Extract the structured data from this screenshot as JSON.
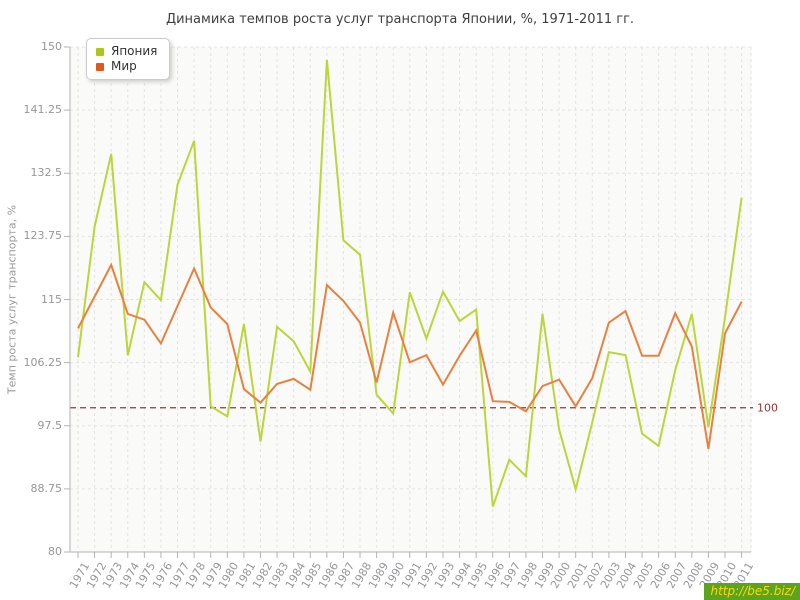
{
  "title": "Динамика темпов роста услуг транспорта Японии, %, 1971-2011 гг.",
  "watermark": {
    "text": "http://be5.biz/"
  },
  "chart_data": {
    "type": "line",
    "title": "Динамика темпов роста услуг транспорта Японии, %, 1971-2011 гг.",
    "xlabel": "",
    "ylabel": "Темп роста услуг транспорта, %",
    "ylim": [
      80,
      150
    ],
    "yticks": [
      80,
      88.75,
      97.5,
      106.25,
      115,
      123.75,
      132.5,
      141.25,
      150
    ],
    "grid": true,
    "legend_position": "top-left",
    "categories": [
      1971,
      1972,
      1973,
      1974,
      1975,
      1976,
      1977,
      1978,
      1979,
      1980,
      1981,
      1982,
      1983,
      1984,
      1985,
      1986,
      1987,
      1988,
      1989,
      1990,
      1991,
      1992,
      1993,
      1994,
      1995,
      1996,
      1997,
      1998,
      1999,
      2000,
      2001,
      2002,
      2003,
      2004,
      2005,
      2006,
      2007,
      2008,
      2009,
      2010,
      2011
    ],
    "series": [
      {
        "name": "Япония",
        "line_color": "#bcd53a",
        "marker_color": "#adc918",
        "values": [
          107.0,
          125.1,
          135.2,
          107.3,
          117.4,
          114.9,
          130.9,
          137.0,
          100.2,
          98.8,
          111.6,
          95.3,
          111.2,
          109.2,
          105.0,
          148.2,
          123.2,
          121.2,
          101.8,
          99.2,
          116.0,
          109.6,
          116.1,
          112.0,
          113.6,
          86.3,
          92.8,
          90.5,
          113.0,
          97.0,
          88.7,
          98.0,
          107.7,
          107.3,
          96.4,
          94.7,
          105.2,
          113.0,
          97.3,
          112.5,
          129.1
        ]
      },
      {
        "name": "Мир",
        "line_color": "#e8813f",
        "marker_color": "#e2571c",
        "values": [
          111.0,
          115.4,
          119.8,
          113.0,
          112.2,
          108.9,
          114.1,
          119.3,
          113.9,
          111.6,
          102.6,
          100.7,
          103.3,
          104.0,
          102.5,
          117.0,
          114.8,
          111.8,
          103.5,
          113.2,
          106.3,
          107.3,
          103.2,
          107.2,
          110.7,
          100.9,
          100.8,
          99.5,
          103.0,
          103.9,
          100.2,
          104.1,
          111.8,
          113.4,
          107.2,
          107.2,
          113.1,
          108.5,
          94.3,
          110.3,
          114.7
        ]
      }
    ],
    "reference_line": {
      "value": 100,
      "label": "100",
      "color": "#993333"
    },
    "colors": {
      "grid": "#e3e3e3",
      "axis": "#b3b3b6",
      "tick_text": "#97979c",
      "plot_bg": "#fafaf9"
    }
  }
}
